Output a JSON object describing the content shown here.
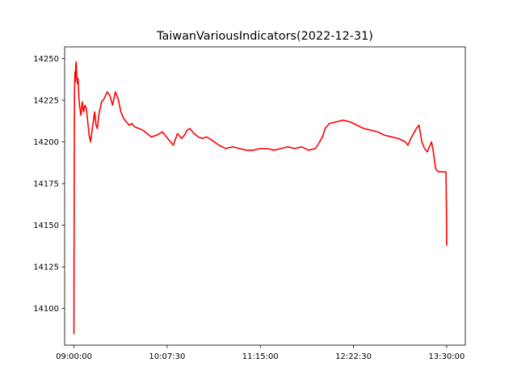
{
  "chart_data": {
    "type": "line",
    "title": "TaiwanVariousIndicators(2022-12-31)",
    "xlabel": "",
    "ylabel": "",
    "x_tick_labels": [
      "09:00:00",
      "10:07:30",
      "11:15:00",
      "12:22:30",
      "13:30:00"
    ],
    "y_tick_labels": [
      "14100",
      "14125",
      "14150",
      "14175",
      "14200",
      "14225",
      "14250"
    ],
    "xlim": [
      "08:53:15",
      "13:43:30"
    ],
    "ylim": [
      14078,
      14257
    ],
    "grid": false,
    "legend": "none",
    "line_color": "#ff0000",
    "series": [
      {
        "x": [
          "09:00:00",
          "09:00:12",
          "09:00:24",
          "09:00:36",
          "09:00:48",
          "09:01:00",
          "09:01:20",
          "09:01:40",
          "09:02:00",
          "09:02:30",
          "09:03:00",
          "09:03:30",
          "09:04:00",
          "09:05:00",
          "09:06:00",
          "09:07:00",
          "09:08:00",
          "09:09:00",
          "09:10:00",
          "09:11:00",
          "09:12:00",
          "09:13:00",
          "09:14:00",
          "09:15:00",
          "09:16:00",
          "09:17:00",
          "09:18:00",
          "09:20:00",
          "09:22:00",
          "09:24:00",
          "09:26:00",
          "09:28:00",
          "09:30:00",
          "09:32:00",
          "09:34:00",
          "09:36:00",
          "09:38:00",
          "09:40:00",
          "09:42:00",
          "09:44:00",
          "09:47:00",
          "09:50:00",
          "09:53:00",
          "09:56:00",
          "10:00:00",
          "10:04:00",
          "10:08:00",
          "10:12:00",
          "10:15:00",
          "10:18:00",
          "10:20:00",
          "10:22:00",
          "10:24:00",
          "10:27:00",
          "10:30:00",
          "10:33:00",
          "10:36:00",
          "10:40:00",
          "10:45:00",
          "10:50:00",
          "10:55:00",
          "11:00:00",
          "11:05:00",
          "11:10:00",
          "11:15:00",
          "11:20:00",
          "11:25:00",
          "11:30:00",
          "11:35:00",
          "11:40:00",
          "11:45:00",
          "11:50:00",
          "11:55:00",
          "11:58:00",
          "12:00:00",
          "12:02:00",
          "12:05:00",
          "12:10:00",
          "12:15:00",
          "12:20:00",
          "12:25:00",
          "12:30:00",
          "12:35:00",
          "12:40:00",
          "12:45:00",
          "12:50:00",
          "12:55:00",
          "13:00:00",
          "13:02:00",
          "13:04:00",
          "13:06:00",
          "13:08:00",
          "13:10:00",
          "13:12:00",
          "13:14:00",
          "13:16:00",
          "13:18:00",
          "13:19:00",
          "13:20:00",
          "13:21:00",
          "13:22:00",
          "13:24:00",
          "13:26:00",
          "13:28:00",
          "13:29:30",
          "13:29:50",
          "13:30:00"
        ],
        "values": [
          14085,
          14180,
          14228,
          14238,
          14242,
          14236,
          14246,
          14248,
          14240,
          14235,
          14238,
          14228,
          14222,
          14216,
          14224,
          14218,
          14222,
          14220,
          14212,
          14204,
          14200,
          14206,
          14212,
          14218,
          14210,
          14208,
          14216,
          14224,
          14226,
          14230,
          14228,
          14222,
          14230,
          14226,
          14218,
          14214,
          14212,
          14210,
          14211,
          14209,
          14208,
          14207,
          14205,
          14203,
          14204,
          14206,
          14202,
          14198,
          14205,
          14202,
          14204,
          14207,
          14208,
          14205,
          14203,
          14202,
          14203,
          14201,
          14198,
          14196,
          14197,
          14196,
          14195,
          14195,
          14196,
          14196,
          14195,
          14196,
          14197,
          14196,
          14197,
          14195,
          14196,
          14200,
          14203,
          14208,
          14211,
          14212,
          14213,
          14212,
          14210,
          14208,
          14207,
          14206,
          14204,
          14203,
          14202,
          14200,
          14198,
          14202,
          14205,
          14208,
          14210,
          14200,
          14196,
          14194,
          14198,
          14200,
          14196,
          14190,
          14184,
          14182,
          14182,
          14182,
          14182,
          14160,
          14138
        ]
      }
    ]
  }
}
